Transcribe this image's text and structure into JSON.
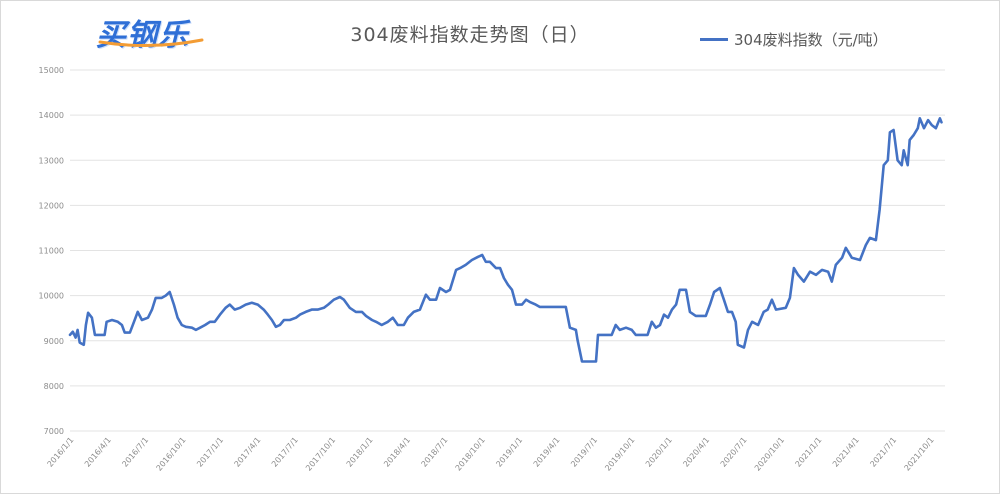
{
  "logo": {
    "text": "买钢乐"
  },
  "colors": {
    "line": "#4472C4",
    "grid": "#e3e3e3",
    "logo_blue": "#2f6fd6",
    "logo_orange": "#f39c34"
  },
  "chart_data": {
    "type": "line",
    "title": "304废料指数走势图（日）",
    "xlabel": "",
    "ylabel": "",
    "ylim": [
      7000,
      15000
    ],
    "grid": true,
    "legend_position": "top-right",
    "y_ticks": [
      "15000",
      "14000",
      "13000",
      "12000",
      "11000",
      "10000",
      "9000",
      "8000",
      "7000"
    ],
    "x_ticks": [
      "2016/1/1",
      "2016/4/1",
      "2016/7/1",
      "2016/10/1",
      "2017/1/1",
      "2017/4/1",
      "2017/7/1",
      "2017/10/1",
      "2018/1/1",
      "2018/4/1",
      "2018/7/1",
      "2018/10/1",
      "2019/1/1",
      "2019/4/1",
      "2019/7/1",
      "2019/10/1",
      "2020/1/1",
      "2020/4/1",
      "2020/7/1",
      "2020/10/1",
      "2021/1/1",
      "2021/4/1",
      "2021/7/1",
      "2021/10/1"
    ],
    "series": [
      {
        "name": "304废料指数（元/吨）",
        "color": "#4472C4",
        "points": [
          [
            "2016/1/1",
            9130
          ],
          [
            "2016/1/8",
            9200
          ],
          [
            "2016/1/15",
            9070
          ],
          [
            "2016/1/20",
            9240
          ],
          [
            "2016/1/25",
            8960
          ],
          [
            "2016/2/4",
            8910
          ],
          [
            "2016/2/9",
            9350
          ],
          [
            "2016/2/14",
            9620
          ],
          [
            "2016/2/23",
            9510
          ],
          [
            "2016/3/1",
            9130
          ],
          [
            "2016/3/25",
            9130
          ],
          [
            "2016/3/30",
            9420
          ],
          [
            "2016/4/12",
            9460
          ],
          [
            "2016/4/26",
            9420
          ],
          [
            "2016/5/6",
            9350
          ],
          [
            "2016/5/13",
            9180
          ],
          [
            "2016/5/26",
            9180
          ],
          [
            "2016/6/5",
            9420
          ],
          [
            "2016/6/14",
            9640
          ],
          [
            "2016/6/24",
            9460
          ],
          [
            "2016/7/9",
            9510
          ],
          [
            "2016/7/19",
            9690
          ],
          [
            "2016/7/28",
            9950
          ],
          [
            "2016/8/12",
            9950
          ],
          [
            "2016/8/22",
            10000
          ],
          [
            "2016/9/1",
            10080
          ],
          [
            "2016/9/11",
            9800
          ],
          [
            "2016/9/20",
            9510
          ],
          [
            "2016/9/30",
            9350
          ],
          [
            "2016/10/10",
            9310
          ],
          [
            "2016/10/25",
            9290
          ],
          [
            "2016/11/4",
            9240
          ],
          [
            "2016/11/14",
            9290
          ],
          [
            "2016/11/26",
            9350
          ],
          [
            "2016/12/8",
            9420
          ],
          [
            "2016/12/20",
            9420
          ],
          [
            "2017/1/2",
            9580
          ],
          [
            "2017/1/16",
            9730
          ],
          [
            "2017/1/26",
            9800
          ],
          [
            "2017/2/7",
            9690
          ],
          [
            "2017/2/19",
            9730
          ],
          [
            "2017/3/4",
            9800
          ],
          [
            "2017/3/19",
            9840
          ],
          [
            "2017/4/3",
            9800
          ],
          [
            "2017/4/17",
            9690
          ],
          [
            "2017/4/27",
            9580
          ],
          [
            "2017/5/7",
            9460
          ],
          [
            "2017/5/17",
            9310
          ],
          [
            "2017/5/27",
            9350
          ],
          [
            "2017/6/6",
            9460
          ],
          [
            "2017/6/20",
            9460
          ],
          [
            "2017/7/5",
            9510
          ],
          [
            "2017/7/15",
            9580
          ],
          [
            "2017/7/29",
            9640
          ],
          [
            "2017/8/13",
            9690
          ],
          [
            "2017/8/28",
            9690
          ],
          [
            "2017/9/12",
            9730
          ],
          [
            "2017/9/22",
            9800
          ],
          [
            "2017/10/6",
            9910
          ],
          [
            "2017/10/21",
            9970
          ],
          [
            "2017/10/31",
            9910
          ],
          [
            "2017/11/14",
            9730
          ],
          [
            "2017/11/29",
            9640
          ],
          [
            "2017/12/14",
            9640
          ],
          [
            "2017/12/24",
            9550
          ],
          [
            "2018/1/8",
            9460
          ],
          [
            "2018/1/18",
            9420
          ],
          [
            "2018/2/1",
            9350
          ],
          [
            "2018/2/15",
            9420
          ],
          [
            "2018/2/26",
            9510
          ],
          [
            "2018/3/10",
            9350
          ],
          [
            "2018/3/25",
            9350
          ],
          [
            "2018/4/4",
            9510
          ],
          [
            "2018/4/18",
            9640
          ],
          [
            "2018/5/3",
            9690
          ],
          [
            "2018/5/18",
            10020
          ],
          [
            "2018/5/28",
            9910
          ],
          [
            "2018/6/12",
            9910
          ],
          [
            "2018/6/21",
            10170
          ],
          [
            "2018/7/6",
            10080
          ],
          [
            "2018/7/16",
            10130
          ],
          [
            "2018/7/31",
            10570
          ],
          [
            "2018/8/10",
            10610
          ],
          [
            "2018/8/24",
            10680
          ],
          [
            "2018/9/8",
            10790
          ],
          [
            "2018/9/23",
            10860
          ],
          [
            "2018/10/3",
            10900
          ],
          [
            "2018/10/12",
            10750
          ],
          [
            "2018/10/22",
            10750
          ],
          [
            "2018/11/6",
            10610
          ],
          [
            "2018/11/16",
            10610
          ],
          [
            "2018/11/25",
            10390
          ],
          [
            "2018/12/5",
            10240
          ],
          [
            "2018/12/15",
            10130
          ],
          [
            "2018/12/25",
            9800
          ],
          [
            "2019/1/9",
            9800
          ],
          [
            "2019/1/19",
            9910
          ],
          [
            "2019/1/28",
            9860
          ],
          [
            "2019/2/11",
            9800
          ],
          [
            "2019/2/20",
            9750
          ],
          [
            "2019/4/24",
            9750
          ],
          [
            "2019/5/4",
            9290
          ],
          [
            "2019/5/19",
            9240
          ],
          [
            "2019/5/23",
            9020
          ],
          [
            "2019/6/3",
            8540
          ],
          [
            "2019/7/7",
            8540
          ],
          [
            "2019/7/12",
            9130
          ],
          [
            "2019/8/15",
            9130
          ],
          [
            "2019/8/25",
            9350
          ],
          [
            "2019/9/4",
            9240
          ],
          [
            "2019/9/19",
            9290
          ],
          [
            "2019/10/3",
            9240
          ],
          [
            "2019/10/13",
            9130
          ],
          [
            "2019/11/11",
            9130
          ],
          [
            "2019/11/21",
            9420
          ],
          [
            "2019/12/1",
            9290
          ],
          [
            "2019/12/11",
            9350
          ],
          [
            "2019/12/21",
            9580
          ],
          [
            "2019/12/31",
            9510
          ],
          [
            "2020/1/10",
            9690
          ],
          [
            "2020/1/20",
            9800
          ],
          [
            "2020/1/29",
            10130
          ],
          [
            "2020/2/13",
            10130
          ],
          [
            "2020/2/22",
            9640
          ],
          [
            "2020/3/7",
            9550
          ],
          [
            "2020/4/1",
            9550
          ],
          [
            "2020/4/11",
            9800
          ],
          [
            "2020/4/21",
            10080
          ],
          [
            "2020/5/5",
            10170
          ],
          [
            "2020/5/15",
            9910
          ],
          [
            "2020/5/25",
            9640
          ],
          [
            "2020/6/4",
            9640
          ],
          [
            "2020/6/13",
            9420
          ],
          [
            "2020/6/18",
            8910
          ],
          [
            "2020/7/3",
            8850
          ],
          [
            "2020/7/13",
            9240
          ],
          [
            "2020/7/23",
            9420
          ],
          [
            "2020/8/7",
            9350
          ],
          [
            "2020/8/21",
            9640
          ],
          [
            "2020/8/31",
            9690
          ],
          [
            "2020/9/10",
            9910
          ],
          [
            "2020/9/20",
            9690
          ],
          [
            "2020/10/14",
            9730
          ],
          [
            "2020/10/24",
            9950
          ],
          [
            "2020/11/3",
            10610
          ],
          [
            "2020/11/13",
            10460
          ],
          [
            "2020/11/27",
            10310
          ],
          [
            "2020/12/12",
            10530
          ],
          [
            "2020/12/27",
            10460
          ],
          [
            "2021/1/11",
            10570
          ],
          [
            "2021/1/26",
            10530
          ],
          [
            "2021/2/4",
            10310
          ],
          [
            "2021/2/13",
            10680
          ],
          [
            "2021/2/27",
            10840
          ],
          [
            "2021/3/8",
            11060
          ],
          [
            "2021/3/23",
            10840
          ],
          [
            "2021/4/12",
            10790
          ],
          [
            "2021/4/26",
            11120
          ],
          [
            "2021/5/6",
            11280
          ],
          [
            "2021/5/21",
            11230
          ],
          [
            "2021/5/30",
            11900
          ],
          [
            "2021/6/9",
            12890
          ],
          [
            "2021/6/19",
            13000
          ],
          [
            "2021/6/24",
            13620
          ],
          [
            "2021/7/3",
            13670
          ],
          [
            "2021/7/13",
            13000
          ],
          [
            "2021/7/23",
            12890
          ],
          [
            "2021/7/28",
            13220
          ],
          [
            "2021/8/7",
            12890
          ],
          [
            "2021/8/12",
            13450
          ],
          [
            "2021/8/22",
            13560
          ],
          [
            "2021/9/1",
            13710
          ],
          [
            "2021/9/6",
            13930
          ],
          [
            "2021/9/16",
            13710
          ],
          [
            "2021/9/26",
            13890
          ],
          [
            "2021/10/5",
            13780
          ],
          [
            "2021/10/15",
            13710
          ],
          [
            "2021/10/25",
            13930
          ],
          [
            "2021/10/29",
            13840
          ]
        ]
      }
    ]
  }
}
